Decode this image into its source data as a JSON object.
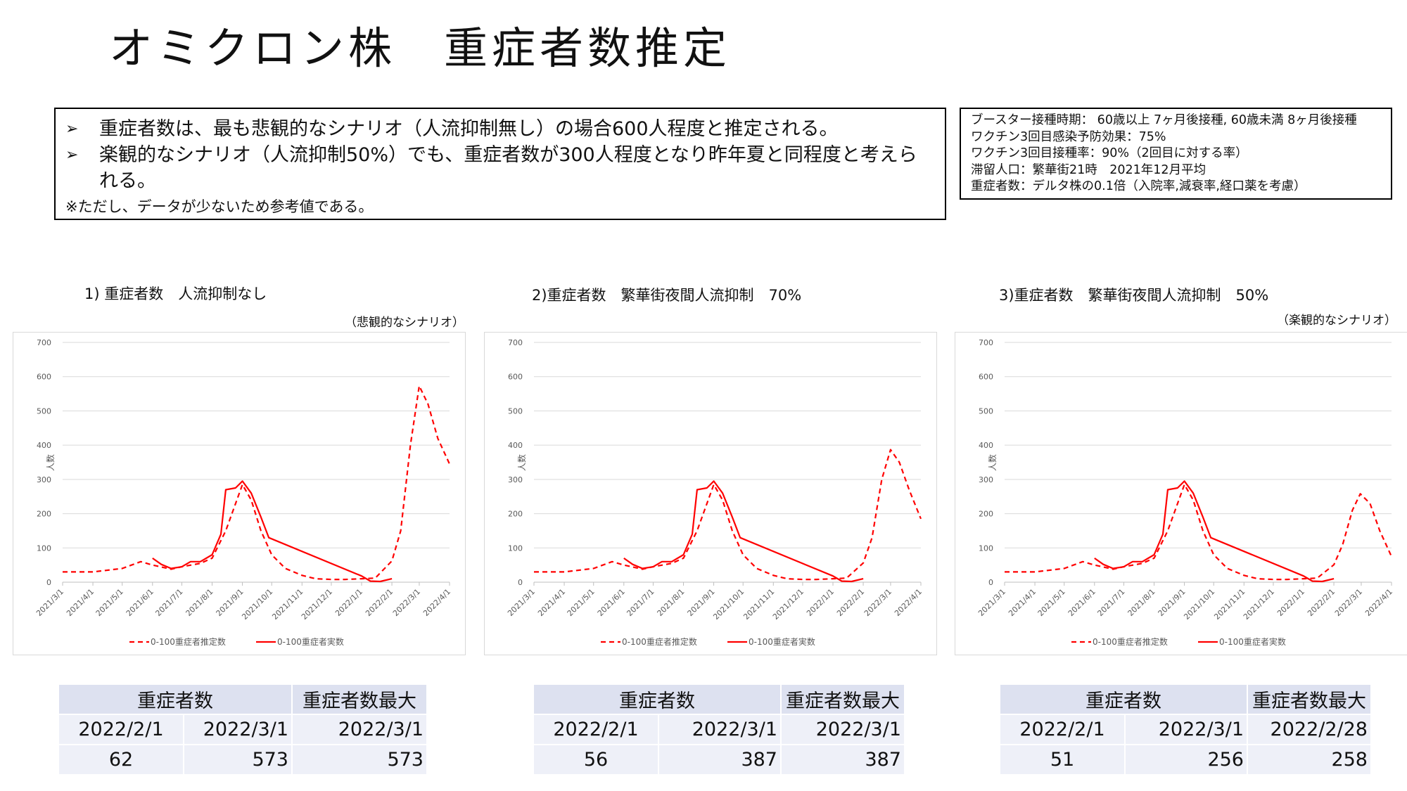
{
  "title": "オミクロン株　重症者数推定",
  "summary": {
    "bullets": [
      "重症者数は、最も悲観的なシナリオ（人流抑制無し）の場合600人程度と推定される。",
      "楽観的なシナリオ（人流抑制50%）でも、重症者数が300人程度となり昨年夏と同程度と考えられる。"
    ],
    "note": "※ただし、データが少ないため参考値である。"
  },
  "params": [
    "ブースター接種時期： 60歳以上 7ヶ月後接種, 60歳未満 8ヶ月後接種",
    "ワクチン3回目感染予防効果：75%",
    "ワクチン3回目接種率：90%（2回目に対する率）",
    "滞留人口：繁華街21時　2021年12月平均",
    "重症者数：デルタ株の0.1倍（入院率,減衰率,経口薬を考慮）"
  ],
  "colors": {
    "series": "#ff0000",
    "grid": "#d9d9d9",
    "table_header": "#dde1f0",
    "table_body": "#eef0f8"
  },
  "chart_data": [
    {
      "type": "line",
      "title": "1) 重症者数　人流抑制なし",
      "scenario": "（悲観的なシナリオ）",
      "ylabel": "人数",
      "ylim": [
        0,
        700
      ],
      "yticks": [
        0,
        100,
        200,
        300,
        400,
        500,
        600,
        700
      ],
      "xticks": [
        "2021/3/1",
        "2021/4/1",
        "2021/5/1",
        "2021/6/1",
        "2021/7/1",
        "2021/8/1",
        "2021/9/1",
        "2021/10/1",
        "2021/11/1",
        "2021/12/1",
        "2022/1/1",
        "2022/2/1",
        "2022/3/1",
        "2022/4/1"
      ],
      "legend": "bottom",
      "series": [
        {
          "name": "0-100重症者推定数",
          "style": "dashed",
          "x": [
            "2021/3/1",
            "2021/4/1",
            "2021/5/1",
            "2021/5/20",
            "2021/6/1",
            "2021/6/20",
            "2021/7/1",
            "2021/7/20",
            "2021/8/1",
            "2021/8/15",
            "2021/9/1",
            "2021/9/10",
            "2021/9/20",
            "2021/10/1",
            "2021/10/15",
            "2021/11/1",
            "2021/11/15",
            "2021/12/1",
            "2021/12/15",
            "2022/1/1",
            "2022/1/15",
            "2022/2/1",
            "2022/2/10",
            "2022/2/20",
            "2022/3/1",
            "2022/3/10",
            "2022/3/20",
            "2022/4/1"
          ],
          "values": [
            30,
            30,
            40,
            60,
            50,
            38,
            45,
            55,
            70,
            150,
            285,
            240,
            150,
            80,
            40,
            20,
            10,
            8,
            8,
            10,
            12,
            62,
            150,
            400,
            573,
            520,
            420,
            345
          ]
        },
        {
          "name": "0-100重症者実数",
          "style": "solid",
          "x": [
            "2021/6/1",
            "2021/6/10",
            "2021/6/20",
            "2021/7/1",
            "2021/7/10",
            "2021/7/20",
            "2021/8/1",
            "2021/8/10",
            "2021/8/15",
            "2021/8/25",
            "2021/9/1",
            "2021/9/10",
            "2021/9/20",
            "2021/9/28",
            "2022/1/1",
            "2022/1/10",
            "2022/1/20",
            "2022/2/1"
          ],
          "values": [
            70,
            52,
            40,
            45,
            60,
            60,
            80,
            140,
            270,
            275,
            295,
            260,
            190,
            130,
            18,
            3,
            2,
            10
          ]
        }
      ]
    },
    {
      "type": "line",
      "title": "2)重症者数　繁華街夜間人流抑制　70%",
      "scenario": "",
      "ylabel": "人数",
      "ylim": [
        0,
        700
      ],
      "yticks": [
        0,
        100,
        200,
        300,
        400,
        500,
        600,
        700
      ],
      "xticks": [
        "2021/3/1",
        "2021/4/1",
        "2021/5/1",
        "2021/6/1",
        "2021/7/1",
        "2021/8/1",
        "2021/9/1",
        "2021/10/1",
        "2021/11/1",
        "2021/12/1",
        "2022/1/1",
        "2022/2/1",
        "2022/3/1",
        "2022/4/1"
      ],
      "legend": "bottom",
      "series": [
        {
          "name": "0-100重症者推定数",
          "style": "dashed",
          "x": [
            "2021/3/1",
            "2021/4/1",
            "2021/5/1",
            "2021/5/20",
            "2021/6/1",
            "2021/6/20",
            "2021/7/1",
            "2021/7/20",
            "2021/8/1",
            "2021/8/15",
            "2021/9/1",
            "2021/9/10",
            "2021/9/20",
            "2021/10/1",
            "2021/10/15",
            "2021/11/1",
            "2021/11/15",
            "2021/12/1",
            "2021/12/15",
            "2022/1/1",
            "2022/1/15",
            "2022/2/1",
            "2022/2/10",
            "2022/2/20",
            "2022/3/1",
            "2022/3/10",
            "2022/3/20",
            "2022/4/1"
          ],
          "values": [
            30,
            30,
            40,
            60,
            50,
            38,
            45,
            55,
            70,
            150,
            285,
            240,
            150,
            80,
            40,
            20,
            10,
            8,
            8,
            10,
            12,
            56,
            130,
            300,
            387,
            350,
            270,
            185
          ]
        },
        {
          "name": "0-100重症者実数",
          "style": "solid",
          "x": [
            "2021/6/1",
            "2021/6/10",
            "2021/6/20",
            "2021/7/1",
            "2021/7/10",
            "2021/7/20",
            "2021/8/1",
            "2021/8/10",
            "2021/8/15",
            "2021/8/25",
            "2021/9/1",
            "2021/9/10",
            "2021/9/20",
            "2021/9/28",
            "2022/1/1",
            "2022/1/10",
            "2022/1/20",
            "2022/2/1"
          ],
          "values": [
            70,
            52,
            40,
            45,
            60,
            60,
            80,
            140,
            270,
            275,
            295,
            260,
            190,
            130,
            18,
            3,
            2,
            10
          ]
        }
      ]
    },
    {
      "type": "line",
      "title": "3)重症者数　繁華街夜間人流抑制　50%",
      "scenario": "（楽観的なシナリオ）",
      "ylabel": "人数",
      "ylim": [
        0,
        700
      ],
      "yticks": [
        0,
        100,
        200,
        300,
        400,
        500,
        600,
        700
      ],
      "xticks": [
        "2021/3/1",
        "2021/4/1",
        "2021/5/1",
        "2021/6/1",
        "2021/7/1",
        "2021/8/1",
        "2021/9/1",
        "2021/10/1",
        "2021/11/1",
        "2021/12/1",
        "2022/1/1",
        "2022/2/1",
        "2022/3/1",
        "2022/4/1"
      ],
      "legend": "bottom",
      "series": [
        {
          "name": "0-100重症者推定数",
          "style": "dashed",
          "x": [
            "2021/3/1",
            "2021/4/1",
            "2021/5/1",
            "2021/5/20",
            "2021/6/1",
            "2021/6/20",
            "2021/7/1",
            "2021/7/20",
            "2021/8/1",
            "2021/8/15",
            "2021/9/1",
            "2021/9/10",
            "2021/9/20",
            "2021/10/1",
            "2021/10/15",
            "2021/11/1",
            "2021/11/15",
            "2021/12/1",
            "2021/12/15",
            "2022/1/1",
            "2022/1/15",
            "2022/2/1",
            "2022/2/10",
            "2022/2/20",
            "2022/2/28",
            "2022/3/10",
            "2022/3/20",
            "2022/4/1"
          ],
          "values": [
            30,
            30,
            40,
            60,
            50,
            38,
            45,
            55,
            70,
            150,
            285,
            240,
            150,
            80,
            40,
            20,
            10,
            8,
            8,
            10,
            12,
            51,
            110,
            210,
            258,
            230,
            150,
            75
          ]
        },
        {
          "name": "0-100重症者実数",
          "style": "solid",
          "x": [
            "2021/6/1",
            "2021/6/10",
            "2021/6/20",
            "2021/7/1",
            "2021/7/10",
            "2021/7/20",
            "2021/8/1",
            "2021/8/10",
            "2021/8/15",
            "2021/8/25",
            "2021/9/1",
            "2021/9/10",
            "2021/9/20",
            "2021/9/28",
            "2022/1/1",
            "2022/1/10",
            "2022/1/20",
            "2022/2/1"
          ],
          "values": [
            70,
            52,
            40,
            45,
            60,
            60,
            80,
            140,
            270,
            275,
            295,
            260,
            190,
            130,
            18,
            3,
            2,
            10
          ]
        }
      ]
    }
  ],
  "tables": [
    {
      "h1": "重症者数",
      "h2": "重症者数最大",
      "d1": "2022/2/1",
      "d2": "2022/3/1",
      "d3": "2022/3/1",
      "v1": "62",
      "v2": "573",
      "v3": "573"
    },
    {
      "h1": "重症者数",
      "h2": "重症者数最大",
      "d1": "2022/2/1",
      "d2": "2022/3/1",
      "d3": "2022/3/1",
      "v1": "56",
      "v2": "387",
      "v3": "387"
    },
    {
      "h1": "重症者数",
      "h2": "重症者数最大",
      "d1": "2022/2/1",
      "d2": "2022/3/1",
      "d3": "2022/2/28",
      "v1": "51",
      "v2": "256",
      "v3": "258"
    }
  ]
}
